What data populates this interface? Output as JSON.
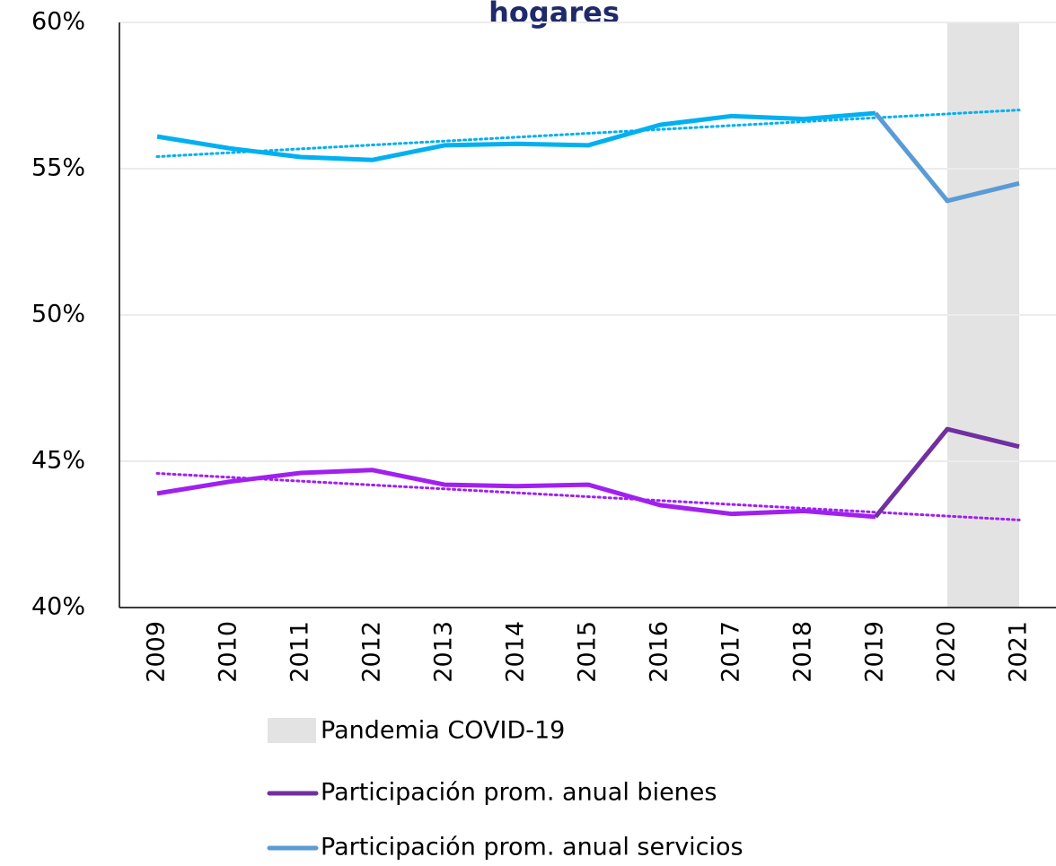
{
  "chart_data": {
    "type": "line",
    "title": "hogares",
    "categories": [
      "2009",
      "2010",
      "2011",
      "2012",
      "2013",
      "2014",
      "2015",
      "2016",
      "2017",
      "2018",
      "2019",
      "2020",
      "2021"
    ],
    "series": [
      {
        "name": "Participación prom. anual bienes",
        "color": "#7030a0",
        "base_color": "#a020f0",
        "values": [
          43.9,
          44.3,
          44.6,
          44.7,
          44.2,
          44.15,
          44.2,
          43.5,
          43.2,
          43.3,
          43.1,
          46.1,
          45.5
        ]
      },
      {
        "name": "Participación prom. anual servicios",
        "color": "#5b9bd5",
        "base_color": "#00b0f0",
        "values": [
          56.1,
          55.7,
          55.4,
          55.3,
          55.8,
          55.85,
          55.8,
          56.5,
          56.8,
          56.7,
          56.9,
          53.9,
          54.5
        ]
      }
    ],
    "shade": {
      "name": "Pandemia COVID-19",
      "from": "2020",
      "to": "2021",
      "color": "#e3e3e3"
    },
    "ylim": [
      40,
      60
    ],
    "yticks": [
      {
        "value": 40,
        "label": "40%"
      },
      {
        "value": 45,
        "label": "45%"
      },
      {
        "value": 50,
        "label": "50%"
      },
      {
        "value": 55,
        "label": "55%"
      },
      {
        "value": 60,
        "label": "60%"
      }
    ],
    "grid": true,
    "trendline": true
  }
}
